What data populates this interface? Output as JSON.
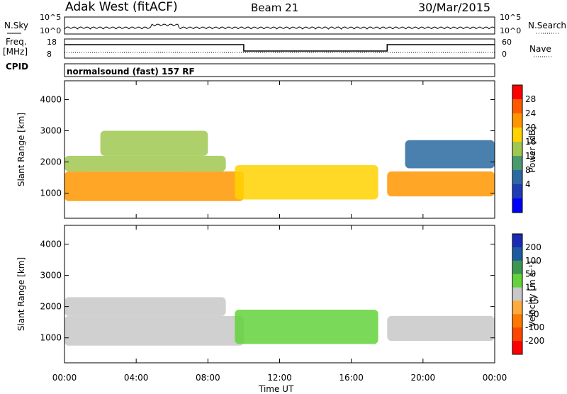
{
  "header": {
    "title_left": "Adak West (fitACF)",
    "title_center": "Beam 21",
    "title_right": "30/Mar/2015"
  },
  "top_panels": {
    "nsky_label": "N.Sky",
    "nsearch_label": "N.Search",
    "n_ticks": [
      "10^5",
      "10^0"
    ],
    "freq_label": "Freq.",
    "freq_unit": "[MHz]",
    "freq_ticks": [
      "18",
      "8"
    ],
    "nave_label": "Nave",
    "nave_ticks": [
      "60",
      "0"
    ],
    "cpid_label": "CPID",
    "cpid_text": "normalsound (fast) 157 RF"
  },
  "panels": {
    "power": {
      "ylabel": "Slant Range [km]",
      "cbar_label": "Power [dB]"
    },
    "velocity": {
      "ylabel": "Slant Range [km]",
      "cbar_label": "Velocity [m s⁻¹]"
    }
  },
  "xaxis": {
    "label": "Time UT"
  },
  "chart_data": [
    {
      "type": "heatmap",
      "name": "power",
      "x_ticks": [
        "00:00",
        "04:00",
        "08:00",
        "12:00",
        "16:00",
        "20:00",
        "00:00"
      ],
      "y_ticks": [
        1000,
        2000,
        3000,
        4000
      ],
      "ylim": [
        200,
        4600
      ],
      "xlim": [
        0,
        24
      ],
      "colorbar": {
        "ticks": [
          "28",
          "24",
          "20",
          "16",
          "12",
          "8",
          "4"
        ],
        "colors": [
          "#ff0000",
          "#ff5a00",
          "#ff9600",
          "#ffd200",
          "#a0c850",
          "#4a9a6e",
          "#2a6aa0",
          "#1e3cb4",
          "#0000ff"
        ]
      },
      "regions": [
        {
          "x": [
            0,
            10
          ],
          "y": [
            750,
            1700
          ],
          "level": 24
        },
        {
          "x": [
            0,
            9
          ],
          "y": [
            1700,
            2200
          ],
          "level": 14
        },
        {
          "x": [
            2,
            8
          ],
          "y": [
            2200,
            3000
          ],
          "level": 16
        },
        {
          "x": [
            9.5,
            17.5
          ],
          "y": [
            800,
            1900
          ],
          "level": 18
        },
        {
          "x": [
            18,
            24
          ],
          "y": [
            900,
            1700
          ],
          "level": 22
        },
        {
          "x": [
            19,
            24
          ],
          "y": [
            1800,
            2700
          ],
          "level": 8
        }
      ]
    },
    {
      "type": "heatmap",
      "name": "velocity",
      "x_ticks": [
        "00:00",
        "04:00",
        "08:00",
        "12:00",
        "16:00",
        "20:00",
        "00:00"
      ],
      "y_ticks": [
        1000,
        2000,
        3000,
        4000
      ],
      "ylim": [
        200,
        4600
      ],
      "xlim": [
        0,
        24
      ],
      "colorbar": {
        "ticks": [
          "200",
          "100",
          "50",
          "15",
          "-15",
          "-50",
          "-100",
          "-200"
        ],
        "colors": [
          "#1a2ab4",
          "#1e5aa0",
          "#3c9650",
          "#64d23c",
          "#c8c8c8",
          "#ffaa3c",
          "#ff7800",
          "#ff4600",
          "#ff0000"
        ]
      },
      "regions": [
        {
          "x": [
            0,
            10
          ],
          "y": [
            750,
            1700
          ],
          "level": 0
        },
        {
          "x": [
            0,
            9
          ],
          "y": [
            1700,
            2300
          ],
          "level": 0
        },
        {
          "x": [
            9.5,
            17.5
          ],
          "y": [
            800,
            1900
          ],
          "level": 20
        },
        {
          "x": [
            18,
            24
          ],
          "y": [
            900,
            1700
          ],
          "level": 0
        }
      ]
    }
  ]
}
